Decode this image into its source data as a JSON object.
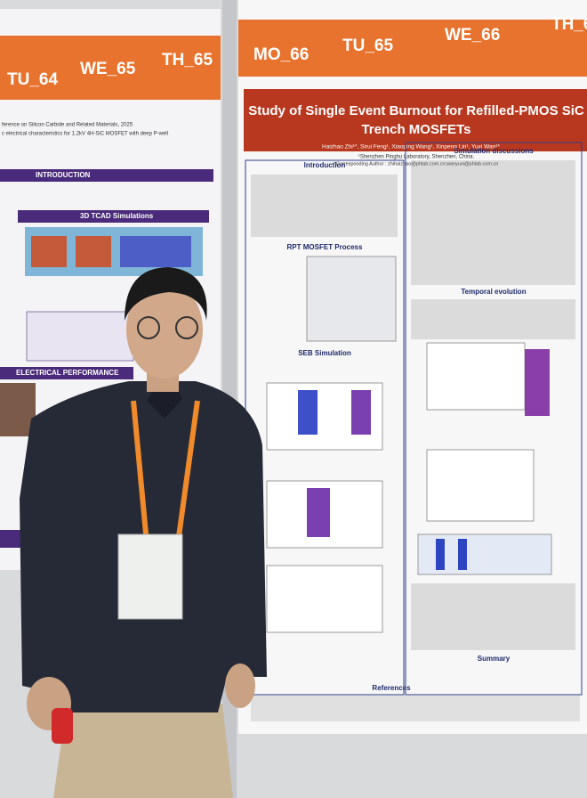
{
  "left_poster": {
    "labels": [
      "TU_64",
      "WE_65",
      "TH_65"
    ],
    "header_lines": [
      "ference on Silicon Carbide and Related Materials, 2025",
      "c electrical characteristics for 1.2kV 4H-SiC MOSFET with deep P-well"
    ],
    "sections": [
      "INTRODUCTION",
      "3D TCAD Simulations",
      "ELECTRICAL PERFORMANCE"
    ]
  },
  "right_poster": {
    "labels": [
      "MO_66",
      "TU_65",
      "WE_66",
      "TH_6"
    ],
    "title_lines": [
      "Study of Single Event Burnout for Refilled-PMOS SiC",
      "Trench MOSFETs"
    ],
    "authors": "Haizhao Zhi¹*, Sirui Feng¹, Xiaoping Wang¹, Xinpeng Lin¹, Yuxi Wan¹*",
    "affiliation": "¹Shenzhen Pinghu Laboratory, Shenzhen, China.",
    "corresponding": "*Corresponding Author : zhihaizhao@phlab.com.cn;wanyuxi@phlab.com.cn",
    "left_sections": [
      "Introduction",
      "RPT MOSFET Process",
      "SEB Simulation"
    ],
    "right_sections": [
      "Simulation discussions",
      "Temporal evolution",
      "Summary"
    ],
    "references": "References"
  }
}
